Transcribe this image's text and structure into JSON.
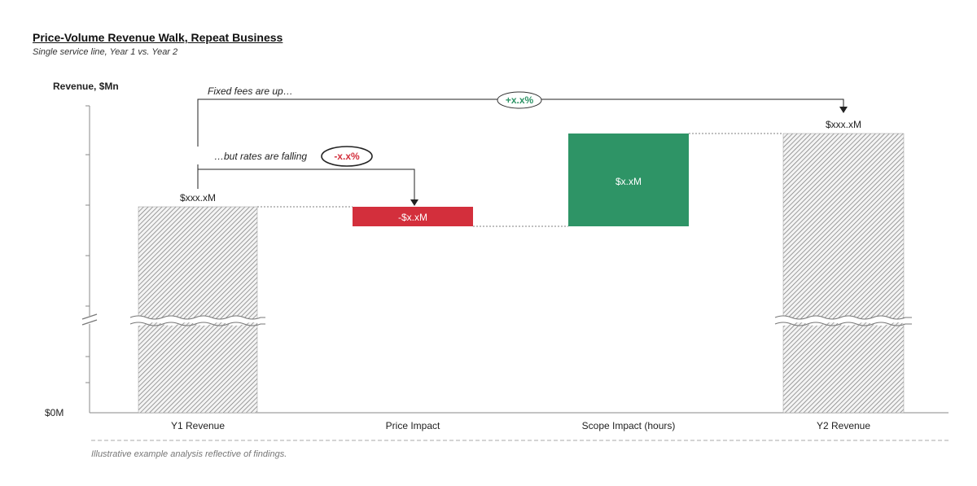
{
  "header": {
    "title": "Price-Volume Revenue Walk, Repeat Business",
    "subtitle": "Single service line, Year 1 vs. Year 2"
  },
  "footnote": "Illustrative example analysis reflective of findings.",
  "chart_data": {
    "type": "bar",
    "subtype": "waterfall",
    "ylabel": "Revenue, $Mn",
    "y_tick_labels": [
      "$0M"
    ],
    "axis_break": true,
    "grid": false,
    "categories": [
      "Y1 Revenue",
      "Price Impact",
      "Scope Impact (hours)",
      "Y2 Revenue"
    ],
    "bars": [
      {
        "kind": "total",
        "label": "$xxx.xM",
        "color": "#d0d0d0"
      },
      {
        "kind": "decrease",
        "label": "-$x.xM",
        "color": "#d32f3c"
      },
      {
        "kind": "increase",
        "label": "$x.xM",
        "color": "#2e9466"
      },
      {
        "kind": "total",
        "label": "$xxx.xM",
        "color": "#d0d0d0"
      }
    ],
    "annotations": [
      {
        "text": "Fixed fees are up…",
        "badge": "+x.x%",
        "badge_color": "#2e9466"
      },
      {
        "text": "…but rates are falling",
        "badge": "-x.x%",
        "badge_color": "#d32f3c"
      }
    ]
  }
}
